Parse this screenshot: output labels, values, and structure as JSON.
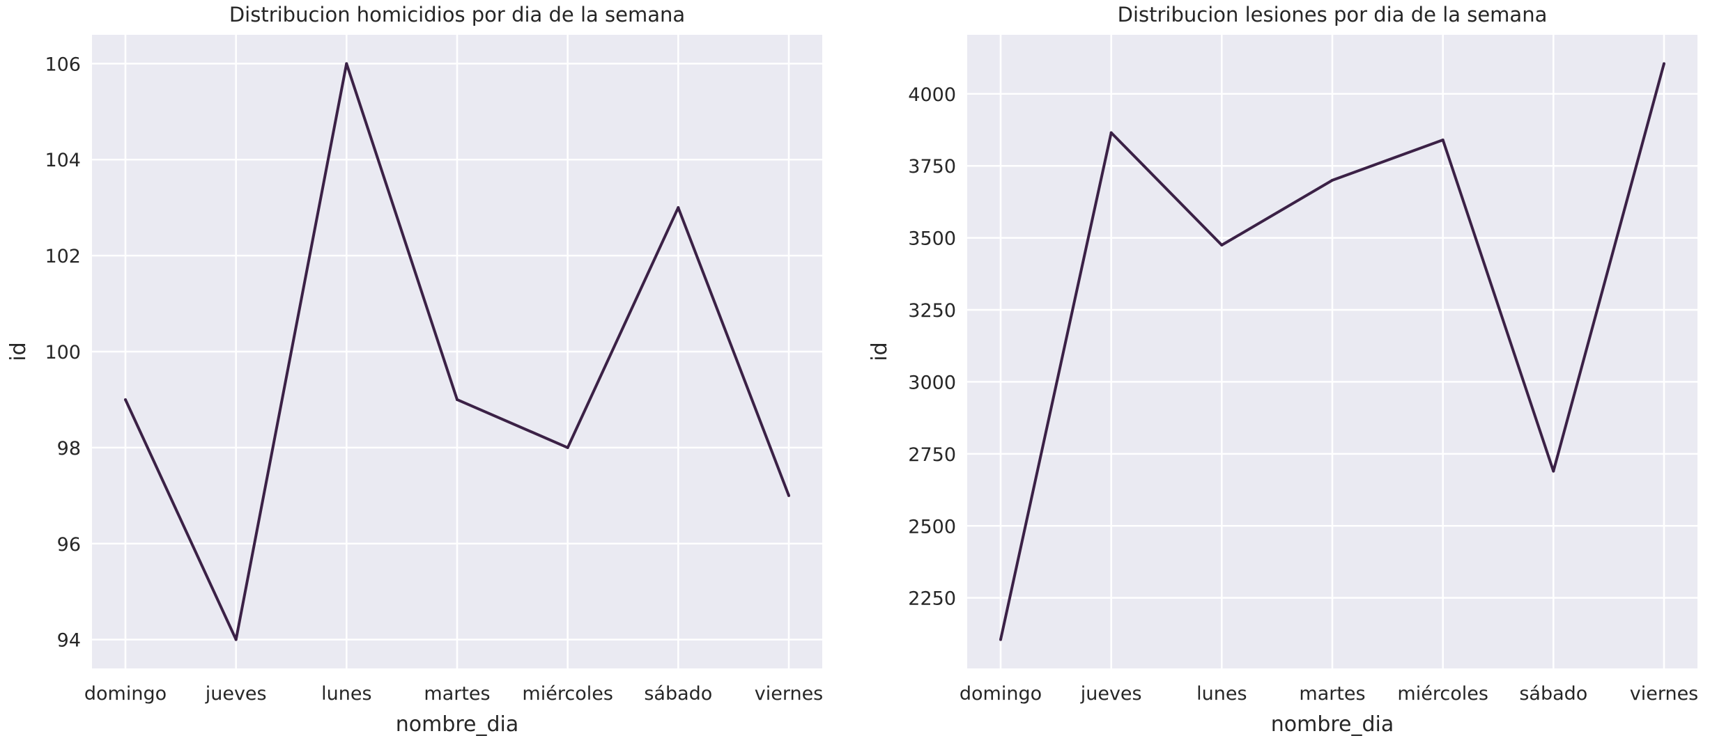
{
  "colors": {
    "background": "#eaeaf2",
    "grid": "#ffffff",
    "line": "#3b2146",
    "text": "#262626"
  },
  "chart_data": [
    {
      "type": "line",
      "title": "Distribucion homicidios por dia de la semana",
      "xlabel": "nombre_dia",
      "ylabel": "id",
      "categories": [
        "domingo",
        "jueves",
        "lunes",
        "martes",
        "miércoles",
        "sábado",
        "viernes"
      ],
      "values": [
        99,
        94,
        106,
        99,
        98,
        103,
        97
      ],
      "yticks": [
        94,
        96,
        98,
        100,
        102,
        104,
        106
      ],
      "ylim": [
        93.4,
        106.6
      ],
      "grid": true
    },
    {
      "type": "line",
      "title": "Distribucion lesiones por dia de la semana",
      "xlabel": "nombre_dia",
      "ylabel": "id",
      "categories": [
        "domingo",
        "jueves",
        "lunes",
        "martes",
        "miércoles",
        "sábado",
        "viernes"
      ],
      "values": [
        2105,
        3865,
        3475,
        3700,
        3840,
        2690,
        4105
      ],
      "yticks": [
        2250,
        2500,
        2750,
        3000,
        3250,
        3500,
        3750,
        4000
      ],
      "ylim": [
        2005,
        4205
      ],
      "grid": true
    }
  ]
}
